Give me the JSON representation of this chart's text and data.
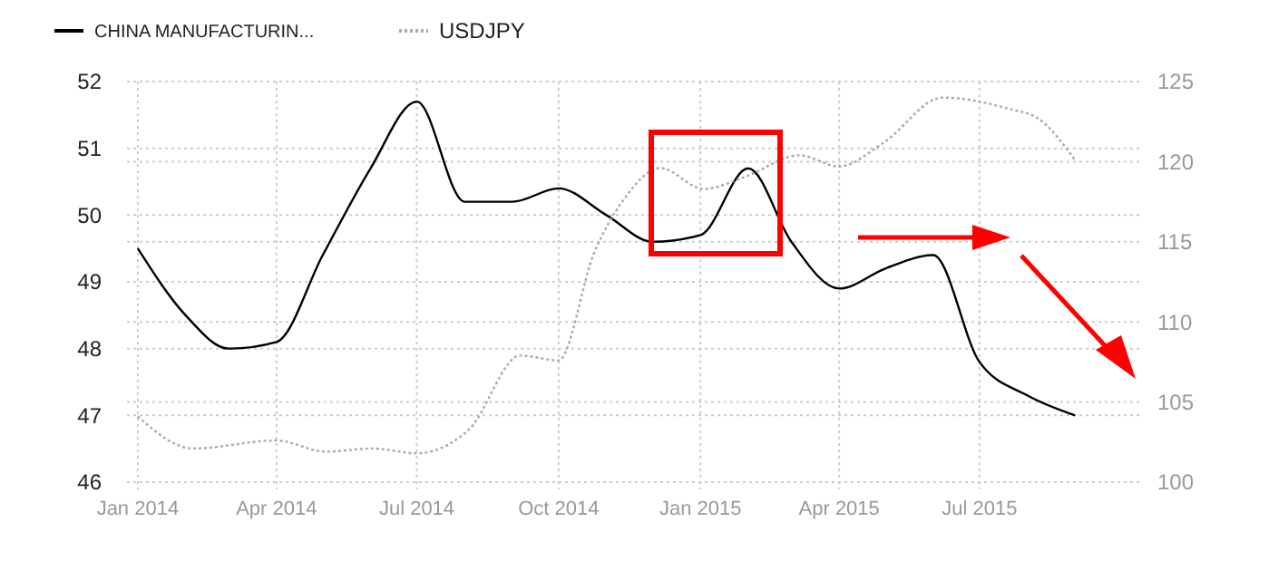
{
  "chart_data": {
    "type": "line",
    "legend": "top left",
    "grid": true,
    "xlim": [
      "2013-12-25",
      "2015-10-15"
    ],
    "xticks": [
      {
        "value": "2014-01-01",
        "label": "Jan 2014"
      },
      {
        "value": "2014-04-01",
        "label": "Apr 2014"
      },
      {
        "value": "2014-07-01",
        "label": "Jul 2014"
      },
      {
        "value": "2014-10-01",
        "label": "Oct 2014"
      },
      {
        "value": "2015-01-01",
        "label": "Jan 2015"
      },
      {
        "value": "2015-04-01",
        "label": "Apr 2015"
      },
      {
        "value": "2015-07-01",
        "label": "Jul 2015"
      }
    ],
    "ylim": [
      46,
      52
    ],
    "yticks": [
      46,
      47,
      48,
      49,
      50,
      51,
      52
    ],
    "y2lim": [
      100,
      125
    ],
    "y2ticks": [
      100,
      105,
      110,
      115,
      120,
      125
    ],
    "series": [
      {
        "name": "CHINA MANUFACTURIN...",
        "color": "#000000",
        "line_style": "solid",
        "x": [
          "2014-01-01",
          "2014-02-01",
          "2014-03-01",
          "2014-04-01",
          "2014-05-01",
          "2014-06-01",
          "2014-07-01",
          "2014-08-01",
          "2014-09-01",
          "2014-10-01",
          "2014-11-01",
          "2014-12-01",
          "2015-01-01",
          "2015-02-01",
          "2015-03-01",
          "2015-04-01",
          "2015-05-01",
          "2015-06-01",
          "2015-07-01",
          "2015-08-01",
          "2015-09-01"
        ],
        "values": [
          49.5,
          48.5,
          48.0,
          48.1,
          49.4,
          50.7,
          51.7,
          50.2,
          50.2,
          50.4,
          50.0,
          49.6,
          49.7,
          50.7,
          49.6,
          48.9,
          49.2,
          49.4,
          47.8,
          47.3,
          47.0
        ]
      },
      {
        "name": "USDJPY",
        "color": "#aaaaaa",
        "line_style": "dotted",
        "axis": "y2",
        "x": [
          "2014-01-01",
          "2014-02-06",
          "2014-04-01",
          "2014-05-03",
          "2014-06-02",
          "2014-07-01",
          "2014-08-04",
          "2014-09-06",
          "2014-10-01",
          "2014-10-24",
          "2014-11-12",
          "2014-12-06",
          "2015-01-03",
          "2015-01-31",
          "2015-03-06",
          "2015-04-01",
          "2015-04-30",
          "2015-06-07",
          "2015-07-20",
          "2015-08-08",
          "2015-09-01"
        ],
        "values": [
          104.1,
          102.1,
          102.6,
          101.9,
          102.1,
          101.8,
          103.3,
          107.9,
          107.6,
          114.3,
          117.6,
          119.6,
          118.3,
          119.1,
          120.4,
          119.7,
          121.2,
          124.0,
          123.3,
          122.7,
          120.1
        ]
      }
    ]
  }
}
